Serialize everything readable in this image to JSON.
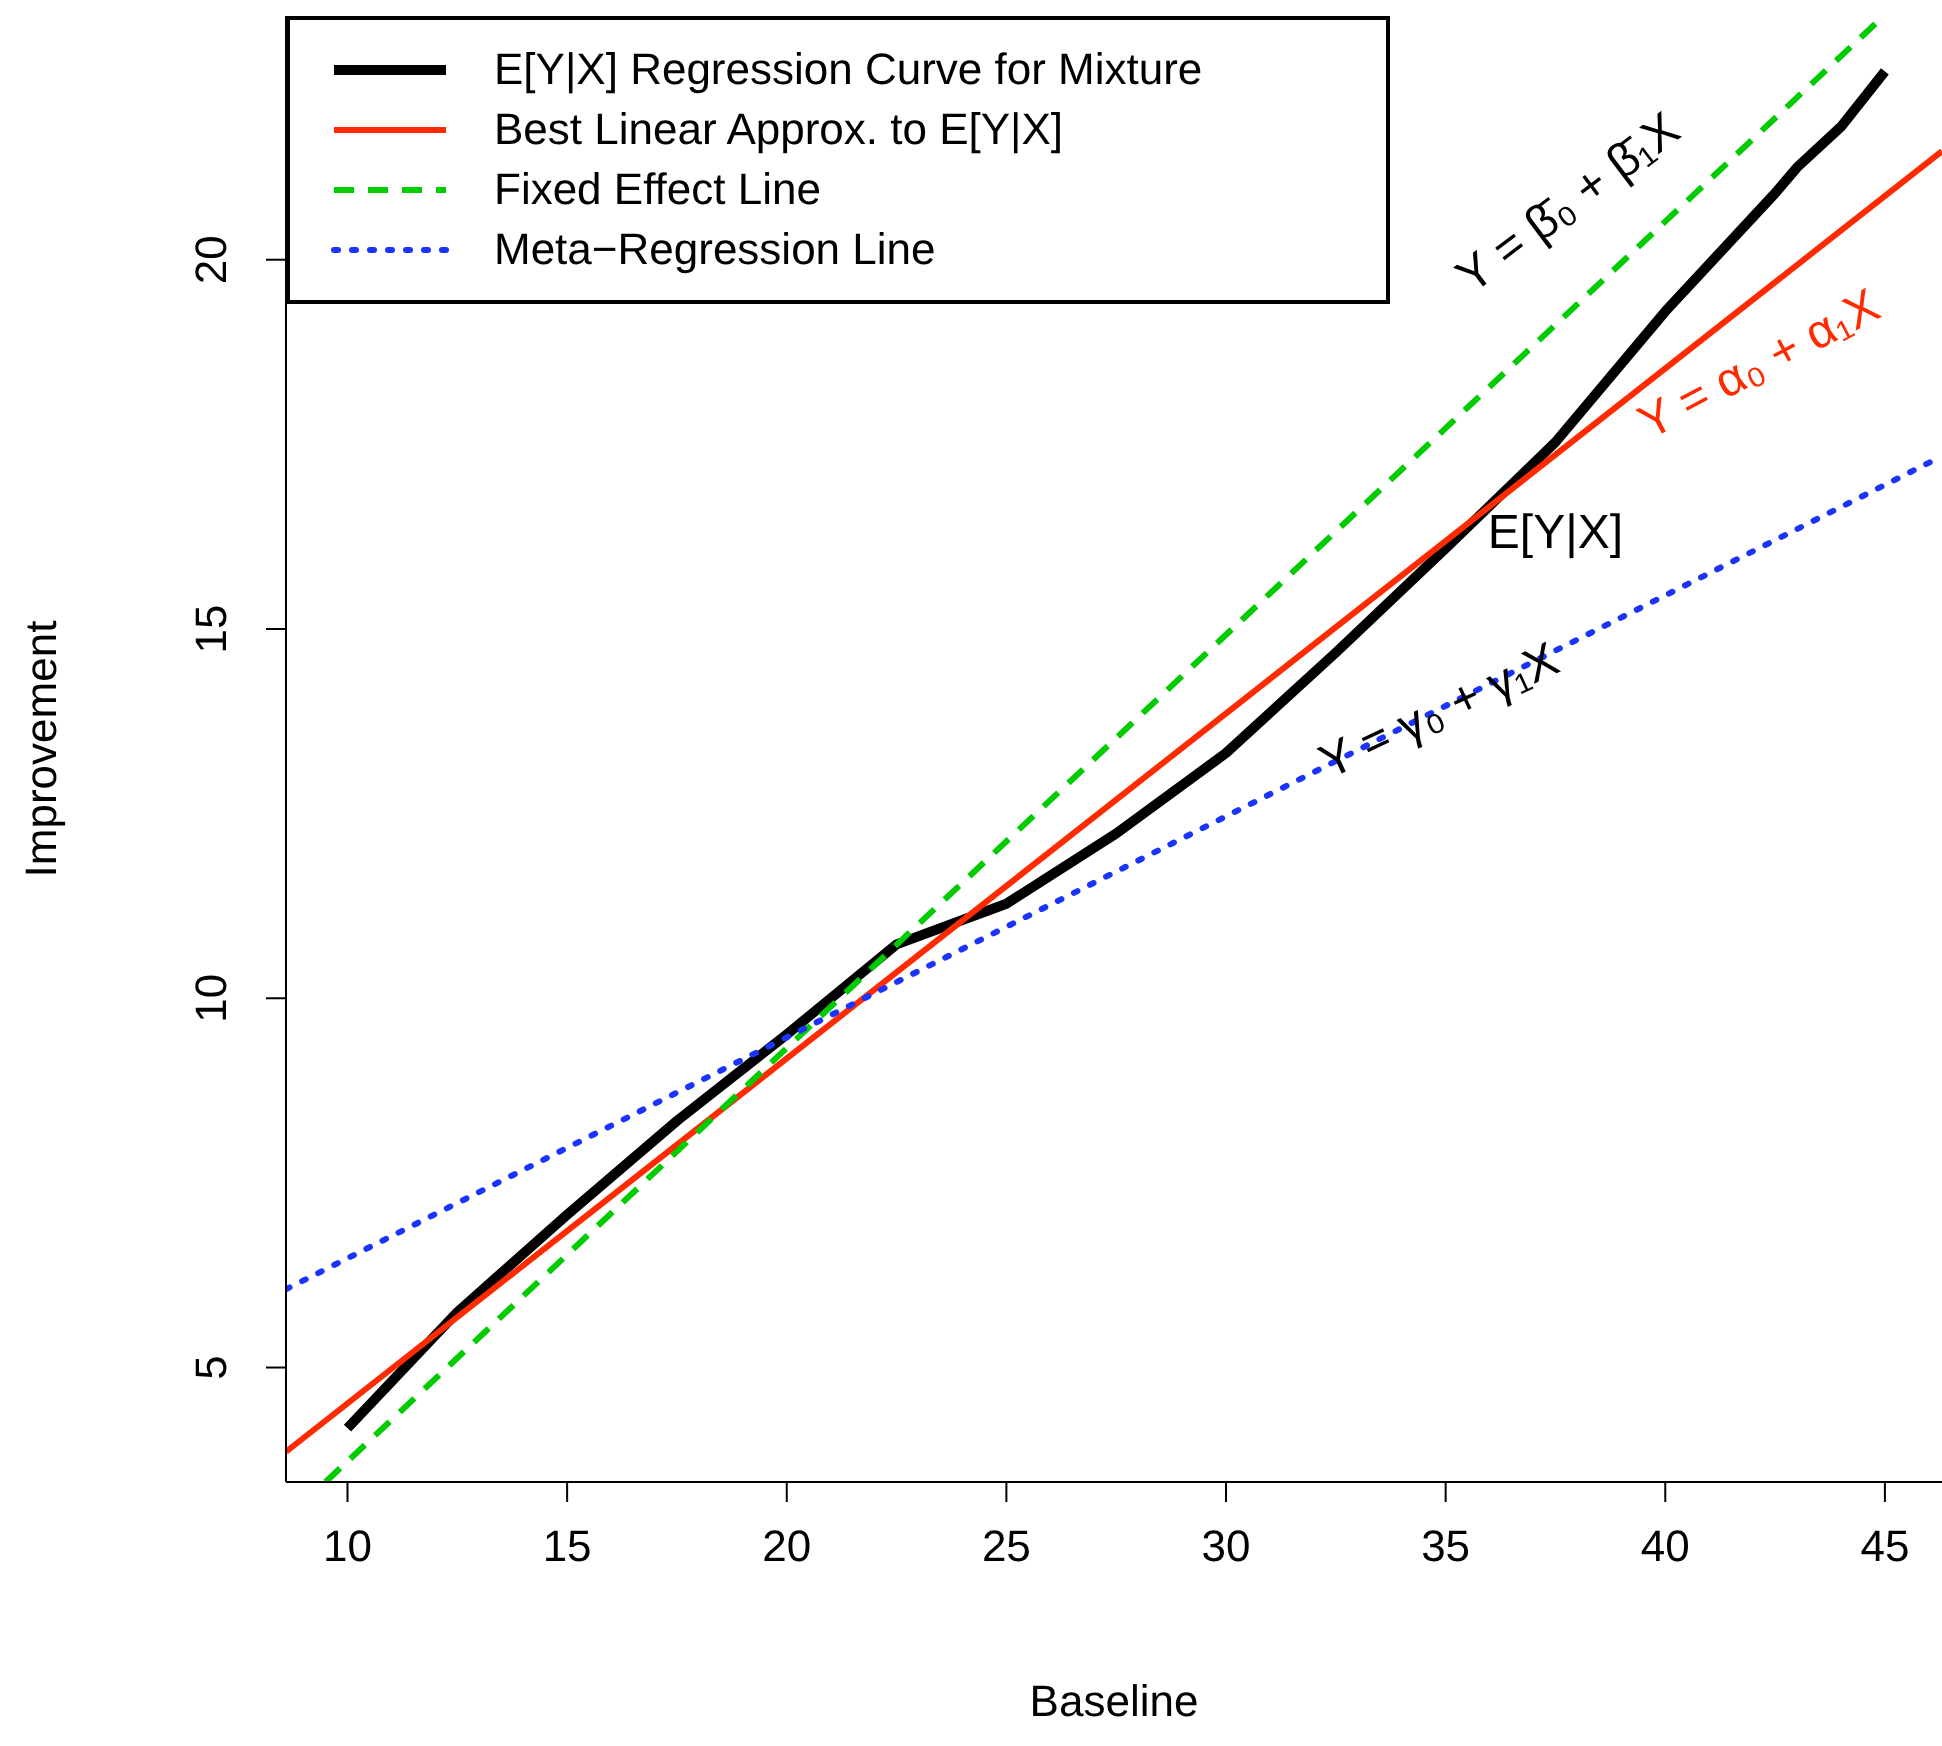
{
  "chart_data": {
    "type": "line",
    "xlabel": "Baseline",
    "ylabel": "Improvement",
    "xlim": [
      8.6,
      46.3
    ],
    "ylim": [
      3.45,
      23.3
    ],
    "xticks": [
      10,
      15,
      20,
      25,
      30,
      35,
      40,
      45
    ],
    "yticks": [
      5,
      10,
      15,
      20
    ],
    "legend": "top left",
    "series": [
      {
        "name": "E[Y|X] Regression Curve for Mixture",
        "color": "#000000",
        "line_style": "solid",
        "x": [
          10,
          12.5,
          15,
          17.5,
          20,
          22.5,
          25,
          27.5,
          30,
          32.5,
          35,
          37.5,
          40,
          42.5,
          43,
          44,
          45
        ],
        "values": [
          4.18,
          5.75,
          7.07,
          8.34,
          9.51,
          10.73,
          11.28,
          12.23,
          13.32,
          14.68,
          16.09,
          17.53,
          19.3,
          20.9,
          21.25,
          21.8,
          22.55
        ]
      },
      {
        "name": "Best Linear Approx. to E[Y|X]",
        "color": "#ff2a00",
        "line_style": "solid",
        "x": [
          8.6,
          46.3
        ],
        "values": [
          3.86,
          21.47
        ]
      },
      {
        "name": "Fixed Effect Line",
        "color": "#00cc00",
        "line_style": "dashed",
        "x": [
          9.5,
          44.9
        ],
        "values": [
          3.45,
          23.26
        ]
      },
      {
        "name": "Meta−Regression Line",
        "color": "#1a33ff",
        "line_style": "dotted",
        "x": [
          8.6,
          46.3
        ],
        "values": [
          6.06,
          17.34
        ]
      }
    ],
    "annotations": [
      "Y = β̄₀ + β̄₁X",
      "Y = α₀ + α₁X",
      "E[Y|X]",
      "Y = γ₀ + γ₁X"
    ]
  }
}
